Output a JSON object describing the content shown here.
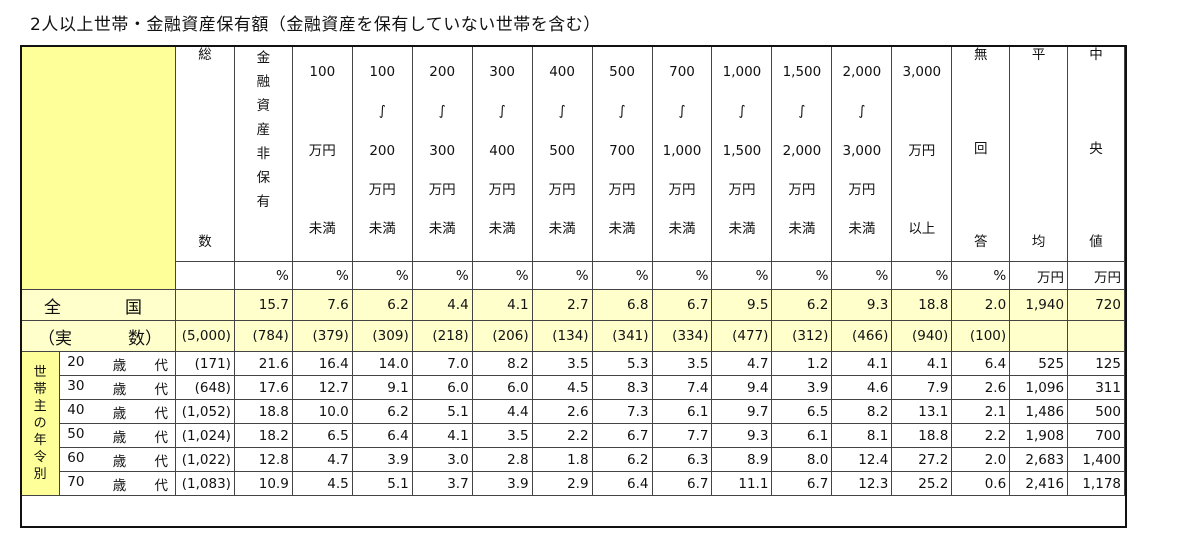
{
  "title": "2人以上世帯・金融資産保有額（金融資産を保有していない世帯を含む）",
  "header": {
    "total_count_chars": [
      "総",
      "数"
    ],
    "nonholding_chars": [
      "金",
      "融",
      "資",
      "産",
      "非",
      "保",
      "有"
    ],
    "range_cols": [
      {
        "top": "100",
        "mid1": "",
        "mid2": "万円",
        "mid3": "",
        "bottom": "未満"
      },
      {
        "top": "100",
        "mid1": "∫",
        "mid2": "200",
        "mid3": "万円",
        "bottom": "未満"
      },
      {
        "top": "200",
        "mid1": "∫",
        "mid2": "300",
        "mid3": "万円",
        "bottom": "未満"
      },
      {
        "top": "300",
        "mid1": "∫",
        "mid2": "400",
        "mid3": "万円",
        "bottom": "未満"
      },
      {
        "top": "400",
        "mid1": "∫",
        "mid2": "500",
        "mid3": "万円",
        "bottom": "未満"
      },
      {
        "top": "500",
        "mid1": "∫",
        "mid2": "700",
        "mid3": "万円",
        "bottom": "未満"
      },
      {
        "top": "700",
        "mid1": "∫",
        "mid2": "1,000",
        "mid3": "万円",
        "bottom": "未満"
      },
      {
        "top": "1,000",
        "mid1": "∫",
        "mid2": "1,500",
        "mid3": "万円",
        "bottom": "未満"
      },
      {
        "top": "1,500",
        "mid1": "∫",
        "mid2": "2,000",
        "mid3": "万円",
        "bottom": "未満"
      },
      {
        "top": "2,000",
        "mid1": "∫",
        "mid2": "3,000",
        "mid3": "万円",
        "bottom": "未満"
      },
      {
        "top": "3,000",
        "mid1": "",
        "mid2": "万円",
        "mid3": "",
        "bottom": "以上"
      }
    ],
    "noanswer_chars": [
      "無",
      "回",
      "答"
    ],
    "average_chars": [
      "平",
      "均"
    ],
    "median_chars": [
      "中",
      "央",
      "値"
    ],
    "units": [
      "%",
      "%",
      "%",
      "%",
      "%",
      "%",
      "%",
      "%",
      "%",
      "%",
      "%",
      "%",
      "%",
      "万円",
      "万円"
    ]
  },
  "national": {
    "label_a": "全",
    "label_b": "国",
    "count_label_a": "（実",
    "count_label_b": "数）",
    "count_total": "(5,000)",
    "values": [
      "15.7",
      "7.6",
      "6.2",
      "4.4",
      "4.1",
      "2.7",
      "6.8",
      "6.7",
      "9.5",
      "6.2",
      "9.3",
      "18.8",
      "2.0",
      "1,940",
      "720"
    ],
    "counts": [
      "(784)",
      "(379)",
      "(309)",
      "(218)",
      "(206)",
      "(134)",
      "(341)",
      "(334)",
      "(477)",
      "(312)",
      "(466)",
      "(940)",
      "(100)"
    ]
  },
  "side_label_chars": [
    "世",
    "帯",
    "主",
    "の",
    "年",
    "令",
    "別"
  ],
  "age_rows": [
    {
      "num": "20",
      "sai": "歳",
      "dai": "代",
      "count": "(171)",
      "values": [
        "21.6",
        "16.4",
        "14.0",
        "7.0",
        "8.2",
        "3.5",
        "5.3",
        "3.5",
        "4.7",
        "1.2",
        "4.1",
        "4.1",
        "6.4",
        "525",
        "125"
      ]
    },
    {
      "num": "30",
      "sai": "歳",
      "dai": "代",
      "count": "(648)",
      "values": [
        "17.6",
        "12.7",
        "9.1",
        "6.0",
        "6.0",
        "4.5",
        "8.3",
        "7.4",
        "9.4",
        "3.9",
        "4.6",
        "7.9",
        "2.6",
        "1,096",
        "311"
      ]
    },
    {
      "num": "40",
      "sai": "歳",
      "dai": "代",
      "count": "(1,052)",
      "values": [
        "18.8",
        "10.0",
        "6.2",
        "5.1",
        "4.4",
        "2.6",
        "7.3",
        "6.1",
        "9.7",
        "6.5",
        "8.2",
        "13.1",
        "2.1",
        "1,486",
        "500"
      ]
    },
    {
      "num": "50",
      "sai": "歳",
      "dai": "代",
      "count": "(1,024)",
      "values": [
        "18.2",
        "6.5",
        "6.4",
        "4.1",
        "3.5",
        "2.2",
        "6.7",
        "7.7",
        "9.3",
        "6.1",
        "8.1",
        "18.8",
        "2.2",
        "1,908",
        "700"
      ]
    },
    {
      "num": "60",
      "sai": "歳",
      "dai": "代",
      "count": "(1,022)",
      "values": [
        "12.8",
        "4.7",
        "3.9",
        "3.0",
        "2.8",
        "1.8",
        "6.2",
        "6.3",
        "8.9",
        "8.0",
        "12.4",
        "27.2",
        "2.0",
        "2,683",
        "1,400"
      ]
    },
    {
      "num": "70",
      "sai": "歳",
      "dai": "代",
      "count": "(1,083)",
      "values": [
        "10.9",
        "4.5",
        "5.1",
        "3.7",
        "3.9",
        "2.9",
        "6.4",
        "6.7",
        "11.1",
        "6.7",
        "12.3",
        "25.2",
        "0.6",
        "2,416",
        "1,178"
      ]
    }
  ],
  "colors": {
    "header_yellow": "#ffff99",
    "national_yellow": "#ffffcc",
    "border": "#444444"
  }
}
